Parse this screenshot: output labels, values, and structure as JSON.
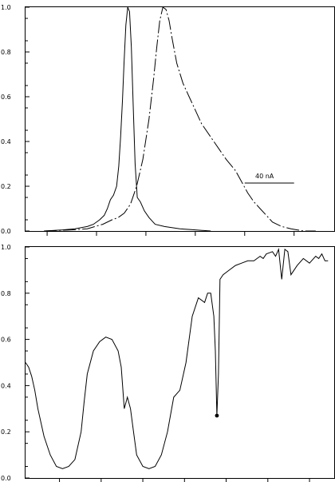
{
  "chart_data": [
    {
      "type": "line",
      "ylim": [
        0,
        1.0
      ],
      "ytick_labels": [
        "0.0",
        "0.2",
        "0.4",
        "0.6",
        "0.8",
        "1.0"
      ],
      "xlim": [
        0,
        100
      ],
      "xtick_values": [
        7,
        23,
        39,
        55,
        71,
        87
      ],
      "grid": false,
      "annotation": {
        "text": "40 nA",
        "x": 77,
        "y": 0.2,
        "bar_x": [
          71,
          87
        ]
      },
      "series": [
        {
          "style": "solid",
          "x": [
            6,
            12,
            16,
            20,
            22,
            24,
            25.5,
            26.5,
            27.5,
            28.5,
            29.5,
            30.2,
            30.8,
            31.4,
            31.9,
            32.5,
            33.1,
            33.7,
            34.3,
            34.9,
            35.5,
            36.2,
            37.2,
            38.5,
            40,
            42,
            45,
            50,
            55,
            60
          ],
          "y": [
            0.0,
            0.005,
            0.01,
            0.02,
            0.03,
            0.05,
            0.07,
            0.1,
            0.14,
            0.16,
            0.2,
            0.29,
            0.42,
            0.58,
            0.75,
            0.92,
            1.0,
            0.98,
            0.82,
            0.55,
            0.3,
            0.15,
            0.13,
            0.09,
            0.06,
            0.03,
            0.02,
            0.01,
            0.005,
            0.0
          ]
        },
        {
          "style": "dashed",
          "x": [
            6,
            15,
            20,
            25,
            28,
            30,
            32,
            34,
            36,
            38,
            40,
            41.5,
            42.5,
            43.5,
            44.5,
            45.5,
            46.5,
            47.5,
            49,
            51,
            53,
            55,
            57,
            60,
            63,
            65,
            68,
            70,
            72,
            74,
            76,
            78,
            80,
            83,
            86,
            88,
            90,
            94
          ],
          "y": [
            0.0,
            0.005,
            0.01,
            0.03,
            0.05,
            0.06,
            0.08,
            0.12,
            0.2,
            0.32,
            0.5,
            0.68,
            0.82,
            0.94,
            1.0,
            0.99,
            0.94,
            0.86,
            0.75,
            0.66,
            0.6,
            0.54,
            0.48,
            0.42,
            0.36,
            0.32,
            0.27,
            0.22,
            0.17,
            0.13,
            0.1,
            0.07,
            0.04,
            0.02,
            0.01,
            0.005,
            0.0,
            0.0
          ]
        }
      ]
    },
    {
      "type": "line",
      "ylim": [
        0,
        1.0
      ],
      "ytick_labels": [
        "0.0",
        "0.2",
        "0.4",
        "0.6",
        "0.8",
        "1.0"
      ],
      "xlim": [
        0,
        100
      ],
      "xtick_values": [
        11,
        24.5,
        38,
        51.5,
        65,
        78.5,
        92
      ],
      "grid": false,
      "marker": {
        "x": 62,
        "y": 0.27
      },
      "series": [
        {
          "style": "solid",
          "x": [
            0,
            1,
            2,
            3,
            4,
            6,
            8,
            10,
            12,
            14,
            16,
            18,
            19,
            20,
            22,
            24,
            26,
            28,
            30,
            31,
            32,
            33,
            34,
            35,
            36,
            38,
            40,
            42,
            44,
            46,
            48,
            50,
            52,
            53,
            54,
            56,
            58,
            59,
            60,
            61,
            61.5,
            62,
            62.5,
            63,
            64,
            66,
            68,
            70,
            72,
            74,
            75,
            76,
            77,
            78,
            80,
            81,
            82,
            83,
            84,
            85,
            86,
            88,
            90,
            92,
            94,
            95,
            96,
            97,
            98
          ],
          "y": [
            0.5,
            0.48,
            0.44,
            0.38,
            0.3,
            0.18,
            0.1,
            0.05,
            0.04,
            0.05,
            0.08,
            0.2,
            0.33,
            0.45,
            0.55,
            0.59,
            0.61,
            0.6,
            0.55,
            0.48,
            0.3,
            0.35,
            0.3,
            0.2,
            0.1,
            0.05,
            0.04,
            0.05,
            0.1,
            0.2,
            0.35,
            0.38,
            0.5,
            0.6,
            0.7,
            0.78,
            0.76,
            0.8,
            0.8,
            0.7,
            0.55,
            0.27,
            0.45,
            0.86,
            0.88,
            0.9,
            0.92,
            0.93,
            0.94,
            0.94,
            0.95,
            0.96,
            0.95,
            0.97,
            0.98,
            0.96,
            0.99,
            0.86,
            0.99,
            0.98,
            0.88,
            0.92,
            0.95,
            0.93,
            0.96,
            0.95,
            0.97,
            0.94,
            0.94
          ]
        }
      ]
    }
  ]
}
